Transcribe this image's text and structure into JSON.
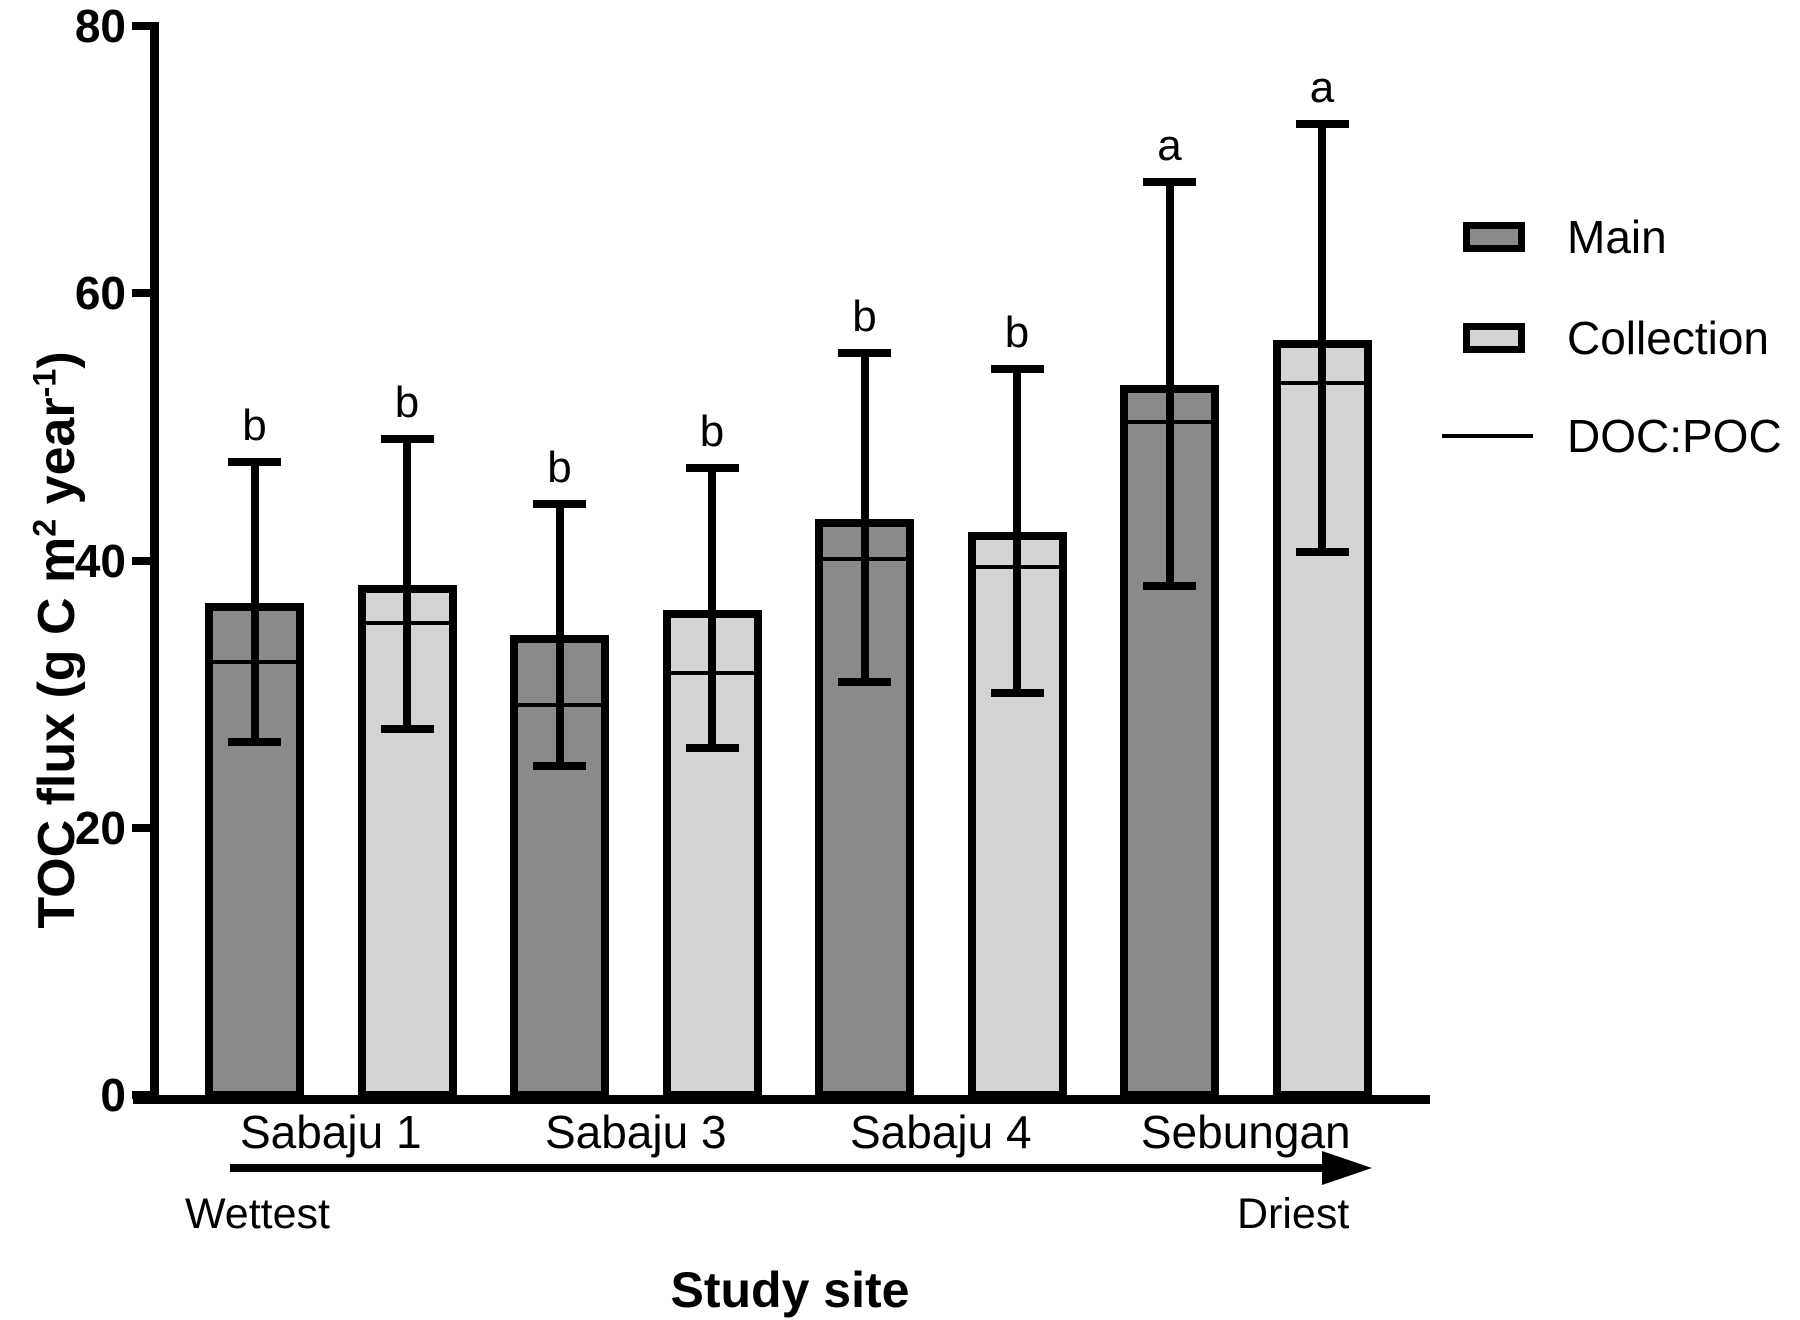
{
  "figure": {
    "xlabel": "Study site",
    "ylabel_plain": "TOC flux (g C m2 year-1)",
    "ylabel_segments": [
      {
        "text": "TOC flux (g C m"
      },
      {
        "text": "2",
        "sup": true
      },
      {
        "text": " year"
      },
      {
        "text": "-1",
        "sup": true
      },
      {
        "text": ")"
      }
    ],
    "gradient_left": "Wettest",
    "gradient_right": "Driest"
  },
  "chart_data": {
    "type": "bar",
    "title": "",
    "xlabel": "Study site",
    "ylabel": "TOC flux (g C m2 year-1)",
    "ylim": [
      0,
      80
    ],
    "yticks": [
      0,
      20,
      40,
      60,
      80
    ],
    "grid": false,
    "legend_position": "right",
    "categories": [
      "Sabaju 1",
      "Sabaju 3",
      "Sabaju 4",
      "Sebungan"
    ],
    "series": [
      {
        "name": "Main",
        "color": "#8a8a8a",
        "values": [
          36.8,
          34.4,
          43.1,
          53.1
        ],
        "err_high": [
          47.4,
          44.2,
          55.5,
          68.3
        ],
        "err_low": [
          26.4,
          24.6,
          30.9,
          38.1
        ],
        "doc_poc": [
          32.4,
          29.2,
          40.1,
          50.4
        ],
        "letters": [
          "b",
          "b",
          "b",
          "a"
        ]
      },
      {
        "name": "Collection",
        "color": "#d4d4d4",
        "values": [
          38.2,
          36.3,
          42.1,
          56.5
        ],
        "err_high": [
          49.1,
          46.9,
          54.3,
          72.7
        ],
        "err_low": [
          27.4,
          26.0,
          30.1,
          40.6
        ],
        "doc_poc": [
          35.3,
          31.6,
          39.5,
          53.3
        ],
        "letters": [
          "b",
          "b",
          "b",
          "a"
        ]
      }
    ],
    "legend": [
      {
        "label": "Main",
        "type": "box",
        "color": "#8a8a8a"
      },
      {
        "label": "Collection",
        "type": "box",
        "color": "#d4d4d4"
      },
      {
        "label": "DOC:POC",
        "type": "line",
        "color": "#000000"
      }
    ],
    "annotations": {
      "gradient_left": "Wettest",
      "gradient_right": "Driest"
    }
  }
}
